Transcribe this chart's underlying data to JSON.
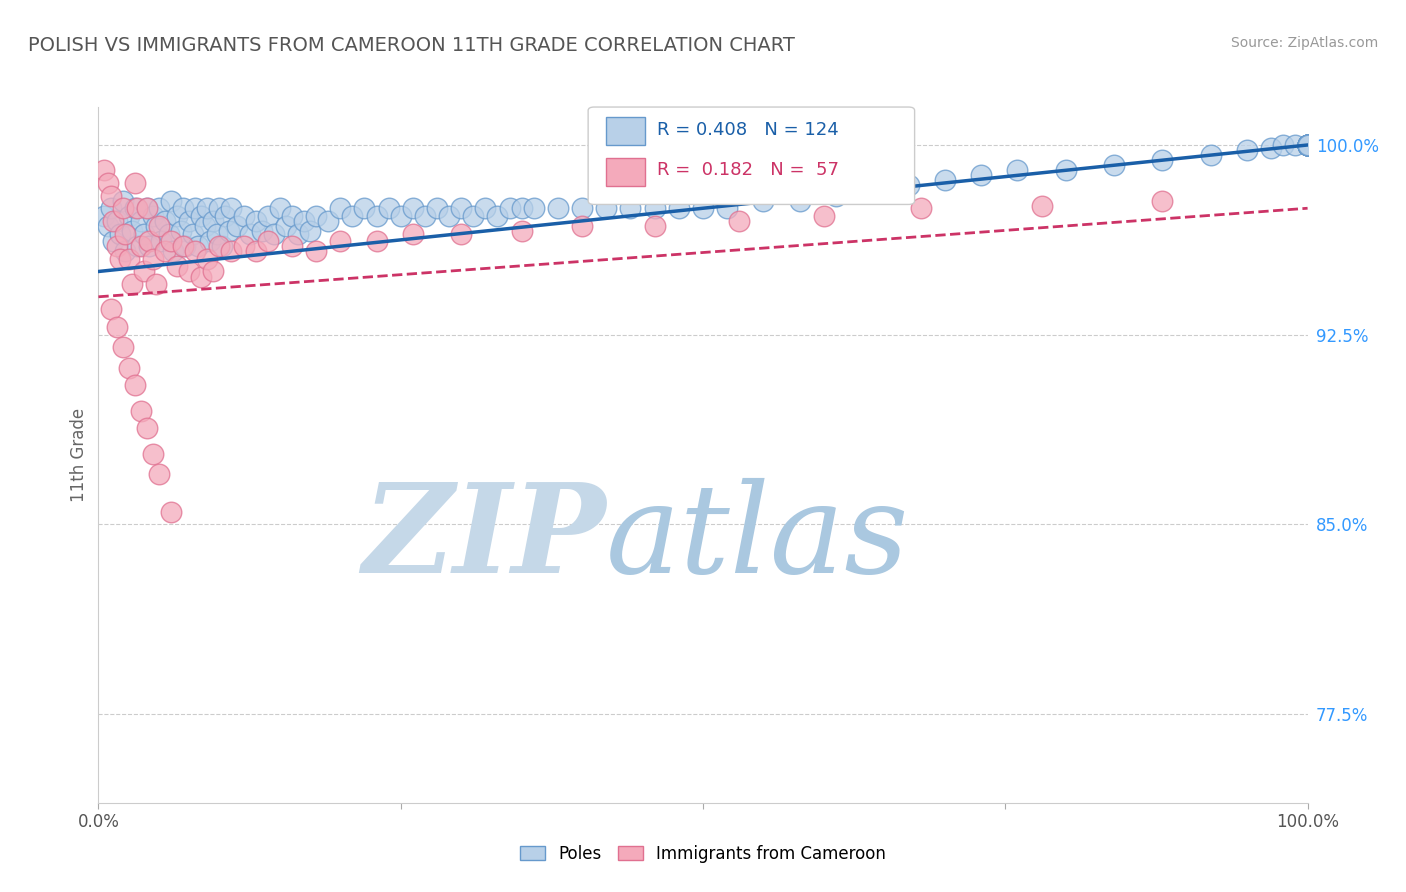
{
  "title": "POLISH VS IMMIGRANTS FROM CAMEROON 11TH GRADE CORRELATION CHART",
  "source": "Source: ZipAtlas.com",
  "ylabel": "11th Grade",
  "xlim": [
    0,
    1
  ],
  "ylim": [
    0.74,
    1.015
  ],
  "yticks": [
    0.775,
    0.85,
    0.925,
    1.0
  ],
  "ytick_labels": [
    "77.5%",
    "85.0%",
    "92.5%",
    "100.0%"
  ],
  "poles_R": 0.408,
  "poles_N": 124,
  "cam_R": 0.182,
  "cam_N": 57,
  "poles_color": "#b8d0e8",
  "poles_edge_color": "#6699cc",
  "cam_color": "#f4aabb",
  "cam_edge_color": "#e07090",
  "trendline_poles_color": "#1a5fa8",
  "trendline_cam_color": "#cc3366",
  "trendline_poles_start": 0.95,
  "trendline_poles_end": 1.0,
  "trendline_cam_start": 0.94,
  "trendline_cam_end": 0.975,
  "watermark_color_zip": "#c5d8e8",
  "watermark_color_atlas": "#aac8e0",
  "title_color": "#555555",
  "axis_label_color": "#666666",
  "right_label_color": "#3399ff",
  "source_color": "#999999",
  "background_color": "#ffffff",
  "grid_color": "#cccccc",
  "legend_box_edge": "#cccccc",
  "poles_x": [
    0.005,
    0.008,
    0.01,
    0.012,
    0.015,
    0.018,
    0.02,
    0.022,
    0.025,
    0.028,
    0.03,
    0.032,
    0.035,
    0.038,
    0.04,
    0.042,
    0.045,
    0.048,
    0.05,
    0.052,
    0.055,
    0.058,
    0.06,
    0.062,
    0.065,
    0.068,
    0.07,
    0.072,
    0.075,
    0.078,
    0.08,
    0.082,
    0.085,
    0.088,
    0.09,
    0.092,
    0.095,
    0.098,
    0.1,
    0.102,
    0.105,
    0.108,
    0.11,
    0.115,
    0.12,
    0.125,
    0.13,
    0.135,
    0.14,
    0.145,
    0.15,
    0.155,
    0.16,
    0.165,
    0.17,
    0.175,
    0.18,
    0.19,
    0.2,
    0.21,
    0.22,
    0.23,
    0.24,
    0.25,
    0.26,
    0.27,
    0.28,
    0.29,
    0.3,
    0.31,
    0.32,
    0.33,
    0.34,
    0.35,
    0.36,
    0.38,
    0.4,
    0.42,
    0.44,
    0.46,
    0.48,
    0.5,
    0.52,
    0.55,
    0.58,
    0.61,
    0.64,
    0.67,
    0.7,
    0.73,
    0.76,
    0.8,
    0.84,
    0.88,
    0.92,
    0.95,
    0.97,
    0.98,
    0.99,
    1.0,
    1.0,
    1.0,
    1.0,
    1.0,
    1.0,
    1.0,
    1.0,
    1.0,
    1.0,
    1.0,
    1.0,
    1.0,
    1.0,
    1.0,
    1.0,
    1.0,
    1.0,
    1.0,
    1.0,
    1.0,
    1.0,
    1.0,
    1.0,
    1.0
  ],
  "poles_y": [
    0.972,
    0.968,
    0.975,
    0.962,
    0.97,
    0.965,
    0.978,
    0.958,
    0.972,
    0.966,
    0.975,
    0.96,
    0.97,
    0.965,
    0.975,
    0.96,
    0.972,
    0.968,
    0.975,
    0.962,
    0.97,
    0.965,
    0.978,
    0.958,
    0.972,
    0.966,
    0.975,
    0.96,
    0.97,
    0.965,
    0.975,
    0.96,
    0.972,
    0.968,
    0.975,
    0.962,
    0.97,
    0.965,
    0.975,
    0.96,
    0.972,
    0.966,
    0.975,
    0.968,
    0.972,
    0.965,
    0.97,
    0.966,
    0.972,
    0.965,
    0.975,
    0.968,
    0.972,
    0.965,
    0.97,
    0.966,
    0.972,
    0.97,
    0.975,
    0.972,
    0.975,
    0.972,
    0.975,
    0.972,
    0.975,
    0.972,
    0.975,
    0.972,
    0.975,
    0.972,
    0.975,
    0.972,
    0.975,
    0.975,
    0.975,
    0.975,
    0.975,
    0.975,
    0.975,
    0.975,
    0.975,
    0.975,
    0.975,
    0.978,
    0.978,
    0.98,
    0.982,
    0.984,
    0.986,
    0.988,
    0.99,
    0.99,
    0.992,
    0.994,
    0.996,
    0.998,
    0.999,
    1.0,
    1.0,
    1.0,
    1.0,
    1.0,
    1.0,
    1.0,
    1.0,
    1.0,
    1.0,
    1.0,
    1.0,
    1.0,
    1.0,
    1.0,
    1.0,
    1.0,
    1.0,
    1.0,
    1.0,
    1.0,
    1.0,
    1.0,
    1.0,
    1.0,
    1.0,
    1.0
  ],
  "cam_x": [
    0.005,
    0.008,
    0.01,
    0.012,
    0.015,
    0.018,
    0.02,
    0.022,
    0.025,
    0.028,
    0.03,
    0.032,
    0.035,
    0.038,
    0.04,
    0.042,
    0.045,
    0.048,
    0.05,
    0.055,
    0.06,
    0.065,
    0.07,
    0.075,
    0.08,
    0.085,
    0.09,
    0.095,
    0.1,
    0.11,
    0.12,
    0.13,
    0.14,
    0.16,
    0.18,
    0.2,
    0.23,
    0.26,
    0.3,
    0.35,
    0.4,
    0.46,
    0.53,
    0.6,
    0.68,
    0.78,
    0.88,
    0.01,
    0.015,
    0.02,
    0.025,
    0.03,
    0.035,
    0.04,
    0.045,
    0.05,
    0.06
  ],
  "cam_y": [
    0.99,
    0.985,
    0.98,
    0.97,
    0.96,
    0.955,
    0.975,
    0.965,
    0.955,
    0.945,
    0.985,
    0.975,
    0.96,
    0.95,
    0.975,
    0.962,
    0.955,
    0.945,
    0.968,
    0.958,
    0.962,
    0.952,
    0.96,
    0.95,
    0.958,
    0.948,
    0.955,
    0.95,
    0.96,
    0.958,
    0.96,
    0.958,
    0.962,
    0.96,
    0.958,
    0.962,
    0.962,
    0.965,
    0.965,
    0.966,
    0.968,
    0.968,
    0.97,
    0.972,
    0.975,
    0.976,
    0.978,
    0.935,
    0.928,
    0.92,
    0.912,
    0.905,
    0.895,
    0.888,
    0.878,
    0.87,
    0.855
  ]
}
